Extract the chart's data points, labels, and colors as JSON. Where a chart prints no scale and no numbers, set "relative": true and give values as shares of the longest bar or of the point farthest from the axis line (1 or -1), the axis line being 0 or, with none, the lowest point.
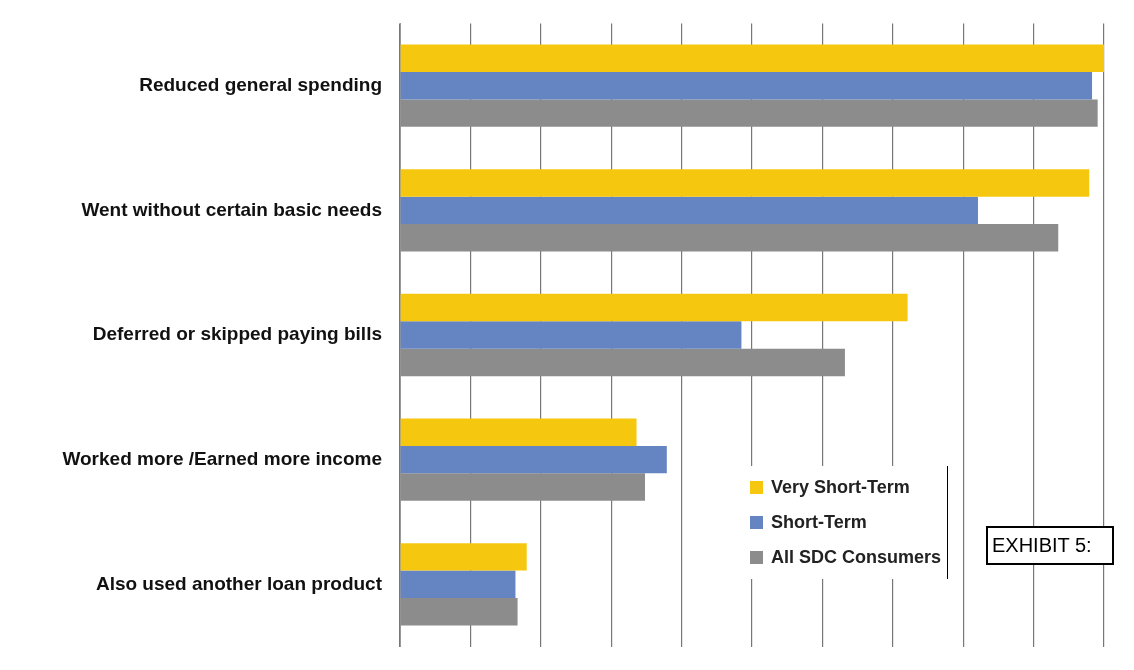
{
  "chart_data": {
    "type": "bar",
    "orientation": "horizontal",
    "relative": true,
    "grid": "x",
    "legend": "bottom right",
    "categories": [
      "Reduced general spending",
      "Went without certain basic needs",
      "Deferred or skipped paying bills",
      "Worked more /Earned more income",
      "Also used another loan product"
    ],
    "series": [
      {
        "name": "Very Short-Term",
        "color": "#f5c80f",
        "values": [
          1,
          0.979,
          0.721,
          0.336,
          0.18
        ]
      },
      {
        "name": "Short-Term",
        "color": "#6585c2",
        "values": [
          0.983,
          0.821,
          0.485,
          0.379,
          0.164
        ]
      },
      {
        "name": "All SDC Consumers",
        "color": "#8c8c8c",
        "values": [
          0.991,
          0.935,
          0.632,
          0.348,
          0.167
        ]
      }
    ],
    "annotations": [
      "EXHIBIT 5:"
    ]
  }
}
